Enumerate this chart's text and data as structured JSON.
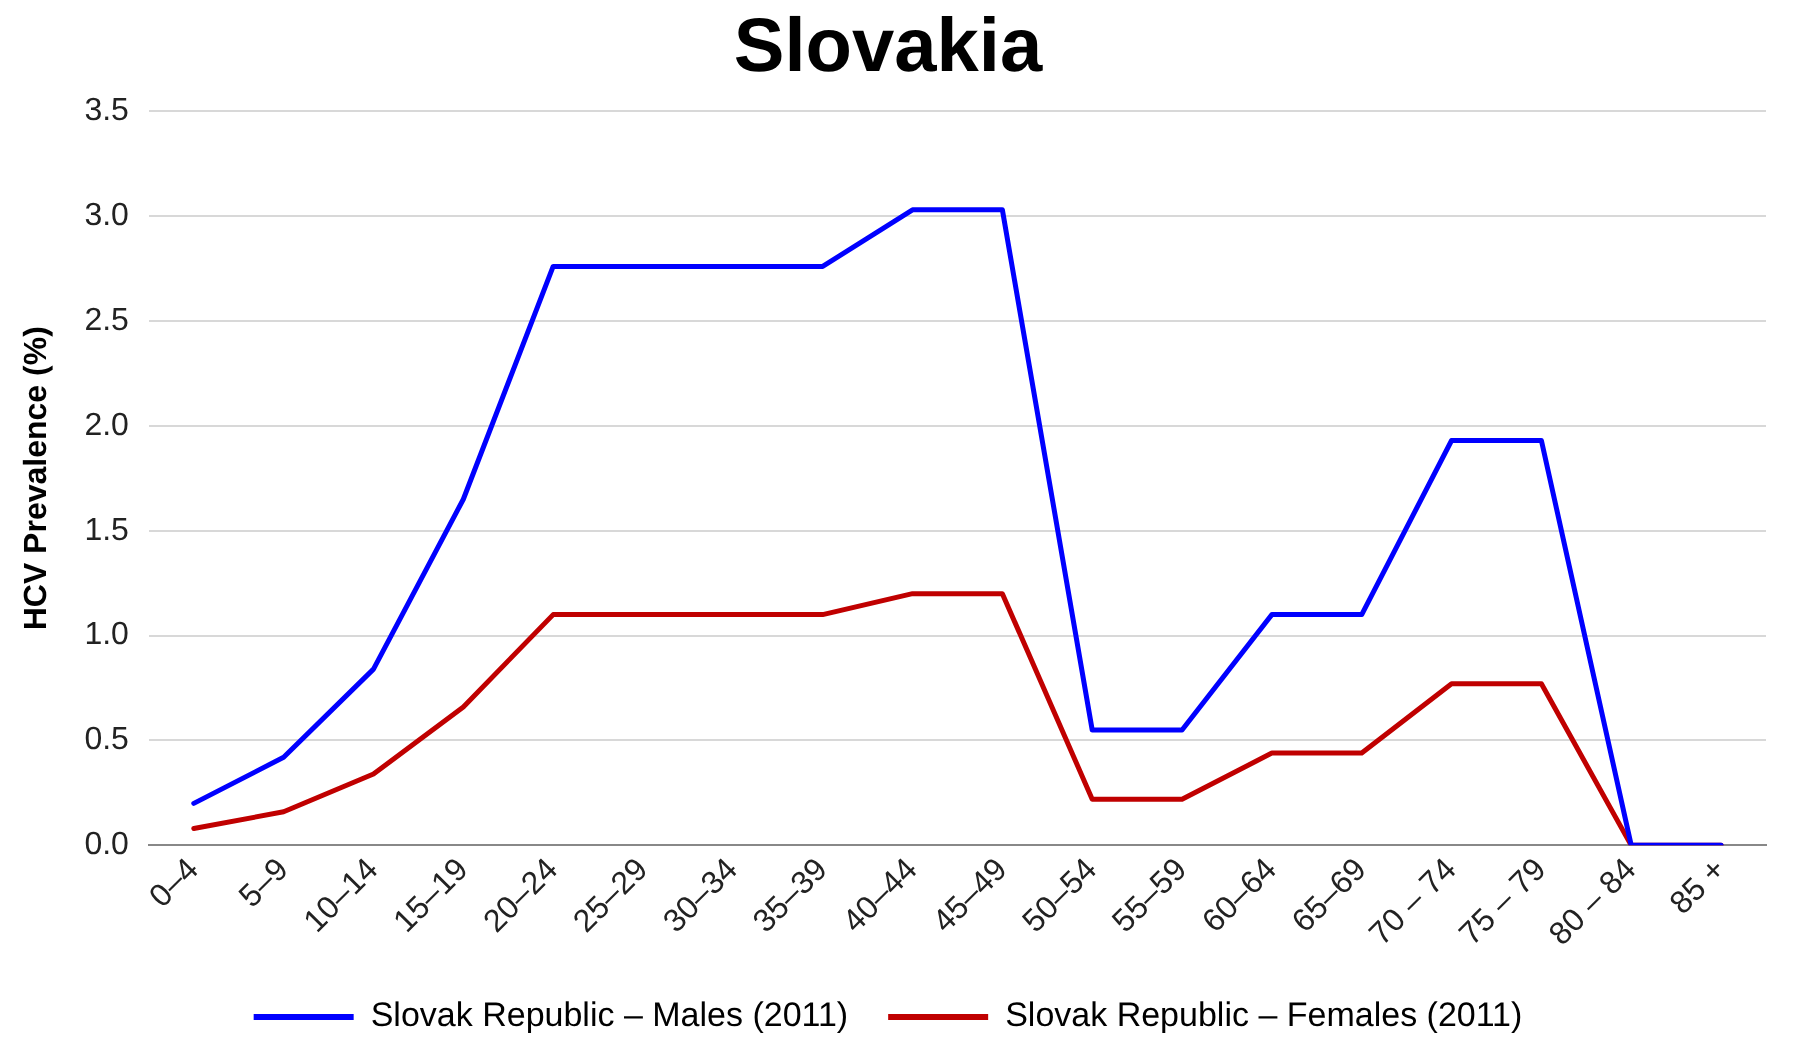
{
  "chart_data": {
    "type": "line",
    "title": "Slovakia",
    "ylabel": "HCV Prevalence (%)",
    "categories": [
      "0–4",
      "5–9",
      "10–14",
      "15–19",
      "20–24",
      "25–29",
      "30–34",
      "35–39",
      "40–44",
      "45–49",
      "50–54",
      "55–59",
      "60–64",
      "65–69",
      "70 – 74",
      "75 – 79",
      "80 – 84",
      "85 +"
    ],
    "series": [
      {
        "name": "Slovak Republic – Males (2011)",
        "color": "#0000ff",
        "values": [
          0.2,
          0.42,
          0.84,
          1.65,
          2.76,
          2.76,
          2.76,
          2.76,
          3.03,
          3.03,
          0.55,
          0.55,
          1.1,
          1.1,
          1.93,
          1.93,
          0,
          0
        ]
      },
      {
        "name": "Slovak Republic – Females (2011)",
        "color": "#c00000",
        "values": [
          0.08,
          0.16,
          0.34,
          0.66,
          1.1,
          1.1,
          1.1,
          1.1,
          1.2,
          1.2,
          0.22,
          0.22,
          0.44,
          0.44,
          0.77,
          0.77,
          0,
          0
        ]
      }
    ],
    "ylim": [
      0,
      3.5
    ],
    "yticks": [
      {
        "value": 0,
        "label": "0.0"
      },
      0.5,
      {
        "value": 1,
        "label": "1.0"
      },
      1.5,
      {
        "value": 2,
        "label": "2.0"
      },
      2.5,
      {
        "value": 3,
        "label": "3.0"
      },
      3.5
    ],
    "grid": "y",
    "legend": "bottom",
    "marker": "none",
    "line_style": "solid"
  }
}
